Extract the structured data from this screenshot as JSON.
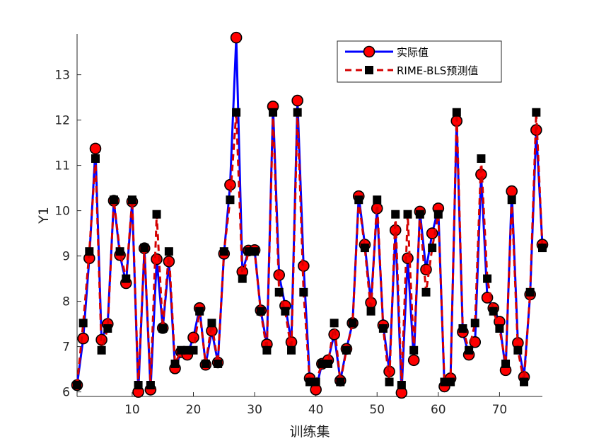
{
  "chart_data": {
    "type": "line",
    "title": "",
    "xlabel": "训练集",
    "ylabel": "Y1",
    "xlim": [
      1,
      77
    ],
    "ylim": [
      5.9,
      13.9
    ],
    "xticks": [
      10,
      20,
      30,
      40,
      50,
      60,
      70
    ],
    "yticks": [
      6,
      7,
      8,
      9,
      10,
      11,
      12,
      13
    ],
    "legend_position": "top-right",
    "grid": false,
    "x": [
      1,
      2,
      3,
      4,
      5,
      6,
      7,
      8,
      9,
      10,
      11,
      12,
      13,
      14,
      15,
      16,
      17,
      18,
      19,
      20,
      21,
      22,
      23,
      24,
      25,
      26,
      27,
      28,
      29,
      30,
      31,
      32,
      33,
      34,
      35,
      36,
      37,
      38,
      39,
      40,
      41,
      42,
      43,
      44,
      45,
      46,
      47,
      48,
      49,
      50,
      51,
      52,
      53,
      54,
      55,
      56,
      57,
      58,
      59,
      60,
      61,
      62,
      63,
      64,
      65,
      66,
      67,
      68,
      69,
      70,
      71,
      72,
      73,
      74,
      75,
      76,
      77
    ],
    "series": [
      {
        "name": "实际值",
        "color": "#0000ff",
        "marker_color": "#ff0000",
        "style": "solid-circle",
        "values": [
          6.15,
          7.18,
          8.95,
          11.37,
          7.15,
          7.5,
          10.22,
          9.02,
          8.4,
          10.2,
          6.0,
          9.17,
          6.05,
          8.93,
          7.41,
          8.88,
          6.52,
          6.88,
          6.82,
          7.2,
          7.85,
          6.6,
          7.35,
          6.65,
          9.05,
          10.57,
          13.82,
          8.65,
          9.12,
          9.13,
          7.8,
          7.05,
          12.3,
          8.58,
          7.9,
          7.1,
          12.43,
          8.78,
          6.3,
          6.05,
          6.62,
          6.7,
          7.27,
          6.25,
          6.95,
          7.52,
          10.32,
          9.25,
          7.97,
          10.05,
          7.47,
          6.45,
          9.57,
          5.98,
          8.95,
          6.7,
          9.98,
          8.7,
          9.5,
          10.05,
          6.12,
          6.3,
          11.98,
          7.32,
          6.82,
          7.1,
          10.8,
          8.08,
          7.85,
          7.55,
          6.48,
          10.43,
          7.08,
          6.33,
          8.15,
          11.78,
          9.25
        ]
      },
      {
        "name": "RIME-BLS预测值",
        "color": "#d40000",
        "marker_color": "#000000",
        "style": "dashed-square",
        "values": [
          6.15,
          7.52,
          9.1,
          11.15,
          6.92,
          7.4,
          10.24,
          9.1,
          8.5,
          10.24,
          6.15,
          9.18,
          6.15,
          9.92,
          7.4,
          9.1,
          6.62,
          6.92,
          6.92,
          6.92,
          7.78,
          6.62,
          7.52,
          6.62,
          9.1,
          10.24,
          12.17,
          8.5,
          9.1,
          9.1,
          7.78,
          6.92,
          12.17,
          8.2,
          7.78,
          6.92,
          12.17,
          8.2,
          6.22,
          6.22,
          6.62,
          6.62,
          7.52,
          6.22,
          6.92,
          7.52,
          10.24,
          9.18,
          7.78,
          10.24,
          7.4,
          6.22,
          9.92,
          6.15,
          9.92,
          6.92,
          9.92,
          8.2,
          9.18,
          9.92,
          6.22,
          6.22,
          12.17,
          7.4,
          6.92,
          7.52,
          11.15,
          8.5,
          7.78,
          7.4,
          6.62,
          10.24,
          6.92,
          6.22,
          8.2,
          12.17,
          9.18
        ]
      }
    ]
  }
}
